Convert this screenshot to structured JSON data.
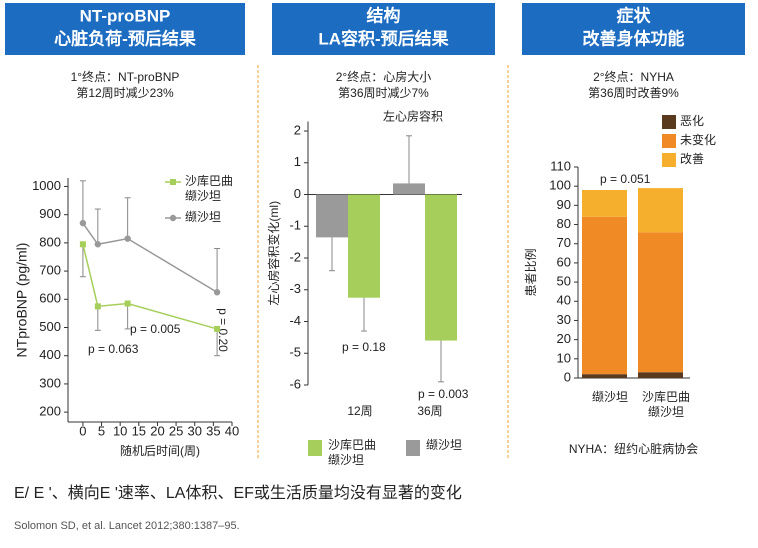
{
  "chart_data": [
    {
      "type": "line",
      "header": [
        "NT-proBNP",
        "心脏负荷-预后结果"
      ],
      "notes": [
        "1°终点：NT-proBNP",
        "第12周时减少23%"
      ],
      "x_label": "随机后时间(周)",
      "y_label": "NTproBNP (pg/ml)",
      "x": [
        0,
        4,
        12,
        36
      ],
      "series": [
        {
          "name": "沙库巴曲缬沙坦",
          "color": "#a6ce5a",
          "marker": "square",
          "values": [
            795,
            575,
            585,
            495
          ],
          "errors": [
            115,
            85,
            90,
            95
          ],
          "error_direction": "down"
        },
        {
          "name": "缬沙坦",
          "color": "#999999",
          "marker": "circle",
          "values": [
            870,
            795,
            815,
            625
          ],
          "errors": [
            150,
            125,
            145,
            155
          ],
          "error_direction": "up"
        }
      ],
      "xlim": [
        -4,
        40
      ],
      "xticks": [
        0,
        5,
        10,
        15,
        20,
        25,
        30,
        35,
        40
      ],
      "ylim": [
        165,
        1030
      ],
      "yticks": [
        200,
        300,
        400,
        500,
        600,
        700,
        800,
        900,
        1000
      ],
      "annotations": [
        "p = 0.063",
        "p = 0.005",
        "p = 0.20"
      ]
    },
    {
      "type": "bar",
      "header": [
        "结构",
        "LA容积-预后结果"
      ],
      "notes": [
        "2°终点：心房大小",
        "第36周时减少7%"
      ],
      "plot_title": "左心房容积",
      "y_label": "左心房容积变化(ml)",
      "categories": [
        "12周",
        "36周"
      ],
      "series": [
        {
          "name": "沙库巴曲缬沙坦",
          "color": "#a6ce5a",
          "values": [
            -3.25,
            -4.6
          ],
          "errors": [
            1.05,
            1.3
          ],
          "error_direction": "down"
        },
        {
          "name": "缬沙坦",
          "color": "#9a9a9a",
          "values": [
            -1.35,
            0.35
          ],
          "errors": [
            1.05,
            1.5
          ],
          "error_direction": "away"
        }
      ],
      "ylim": [
        -6,
        2.3
      ],
      "yticks": [
        -6,
        -5,
        -4,
        -3,
        -2,
        -1,
        0,
        1,
        2
      ],
      "annotations": [
        "p = 0.18",
        "p = 0.003"
      ]
    },
    {
      "type": "stacked_bar",
      "header": [
        "症状",
        "改善身体功能"
      ],
      "notes": [
        "2°终点：NYHA",
        "第36周时改善9%"
      ],
      "y_label": "患者比例",
      "categories": [
        "缬沙坦",
        "沙库巴曲缬沙坦"
      ],
      "series": [
        {
          "name": "恶化",
          "color": "#5a3a1e",
          "values": [
            2,
            3
          ]
        },
        {
          "name": "未变化",
          "color": "#f08a24",
          "values": [
            82,
            73
          ]
        },
        {
          "name": "改善",
          "color": "#f6ae2d",
          "values": [
            14,
            23
          ]
        }
      ],
      "ylim": [
        0,
        110
      ],
      "yticks": [
        0,
        10,
        20,
        30,
        40,
        50,
        60,
        70,
        80,
        90,
        100,
        110
      ],
      "annotations": [
        "p = 0.051"
      ],
      "footnote": "NYHA：纽约心脏病协会"
    }
  ],
  "footer": "E/ E '、横向E '速率、LA体积、EF或生活质量均没有显著的变化",
  "citation": "Solomon SD, et al. Lancet 2012;380:1387–95."
}
